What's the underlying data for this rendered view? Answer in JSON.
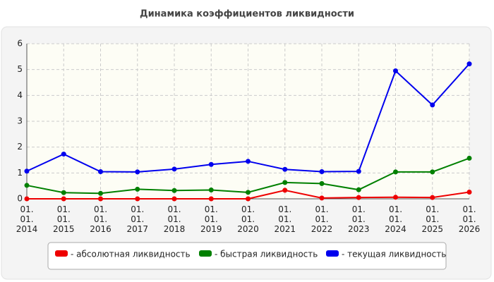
{
  "chart_data": {
    "type": "line",
    "title": "Динамика коэффициентов ликвидности",
    "categories": [
      "01.\n01.\n2014",
      "01.\n01.\n2015",
      "01.\n01.\n2016",
      "01.\n01.\n2017",
      "01.\n01.\n2018",
      "01.\n01.\n2019",
      "01.\n01.\n2020",
      "01.\n01.\n2021",
      "01.\n01.\n2022",
      "01.\n01.\n2023",
      "01.\n01.\n2024",
      "01.\n01.\n2025",
      "01.\n01.\n2026"
    ],
    "series": [
      {
        "name": "- абсолютная ликвидность",
        "color": "#ee0000",
        "values": [
          0,
          0,
          0,
          0,
          0,
          0,
          0,
          0.33,
          0.03,
          0.05,
          0.06,
          0.05,
          0.26
        ]
      },
      {
        "name": "- быстрая ликвидность",
        "color": "#008000",
        "values": [
          0.52,
          0.24,
          0.21,
          0.37,
          0.32,
          0.34,
          0.25,
          0.63,
          0.59,
          0.35,
          1.04,
          1.04,
          1.57
        ]
      },
      {
        "name": "- текущая ликвидность",
        "color": "#0000ee",
        "values": [
          1.07,
          1.73,
          1.05,
          1.04,
          1.15,
          1.33,
          1.45,
          1.14,
          1.05,
          1.06,
          4.95,
          3.63,
          5.22
        ]
      }
    ],
    "ylim": [
      0,
      6
    ],
    "yticks": [
      0,
      1,
      2,
      3,
      4,
      5,
      6
    ],
    "grid": true
  }
}
